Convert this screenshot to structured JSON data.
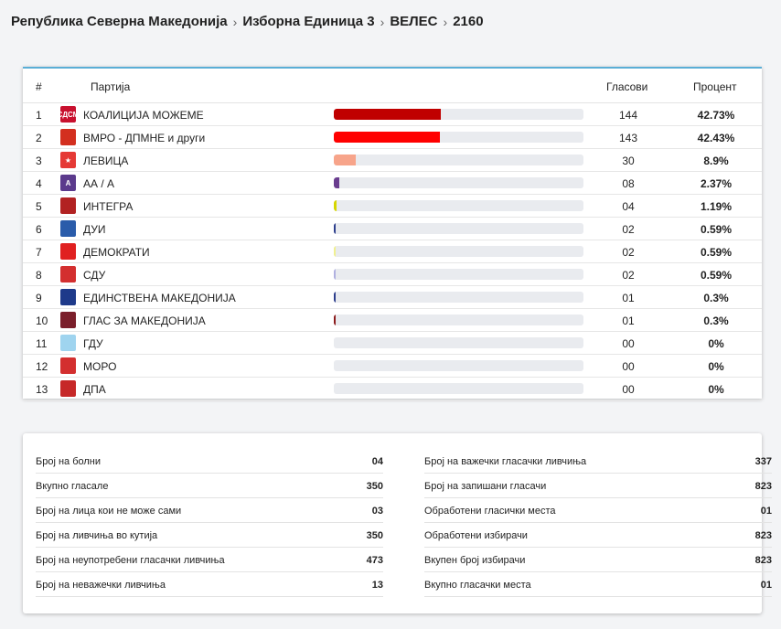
{
  "breadcrumb": [
    "Република Северна Македонија",
    "Изборна Единица 3",
    "ВЕЛЕС",
    "2160"
  ],
  "table": {
    "headers": {
      "num": "#",
      "party": "Партија",
      "votes": "Гласови",
      "percent": "Процент"
    },
    "rows": [
      {
        "num": "1",
        "name": "КОАЛИЦИЈА МОЖЕМЕ",
        "votes": "144",
        "percent": "42.73%",
        "share": 0.4273,
        "bar_color": "#c00000",
        "logo_color": "#c8102e",
        "logo_text": "СДСМ",
        "logo_icon": "sdsm-logo-icon"
      },
      {
        "num": "2",
        "name": "ВМРО - ДПМНЕ и други",
        "votes": "143",
        "percent": "42.43%",
        "share": 0.4243,
        "bar_color": "#ff0000",
        "logo_color": "#d32f1f",
        "logo_text": "",
        "logo_icon": "vmro-logo-icon"
      },
      {
        "num": "3",
        "name": "ЛЕВИЦА",
        "votes": "30",
        "percent": "8.9%",
        "share": 0.089,
        "bar_color": "#f7a48a",
        "logo_color": "#e53935",
        "logo_text": "★",
        "logo_icon": "levica-logo-icon"
      },
      {
        "num": "4",
        "name": "АА / А",
        "votes": "08",
        "percent": "2.37%",
        "share": 0.0237,
        "bar_color": "#6a3d8f",
        "logo_color": "#5b3a8c",
        "logo_text": "A",
        "logo_icon": "aa-logo-icon"
      },
      {
        "num": "5",
        "name": "ИНТЕГРА",
        "votes": "04",
        "percent": "1.19%",
        "share": 0.0119,
        "bar_color": "#d6d600",
        "logo_color": "#b22222",
        "logo_text": "",
        "logo_icon": "integra-logo-icon"
      },
      {
        "num": "6",
        "name": "ДУИ",
        "votes": "02",
        "percent": "0.59%",
        "share": 0.0059,
        "bar_color": "#2c3e8c",
        "logo_color": "#2a5caa",
        "logo_text": "",
        "logo_icon": "dui-logo-icon"
      },
      {
        "num": "7",
        "name": "ДЕМОКРАТИ",
        "votes": "02",
        "percent": "0.59%",
        "share": 0.0059,
        "bar_color": "#f0f090",
        "logo_color": "#e02020",
        "logo_text": "",
        "logo_icon": "demokrati-logo-icon"
      },
      {
        "num": "8",
        "name": "СДУ",
        "votes": "02",
        "percent": "0.59%",
        "share": 0.0059,
        "bar_color": "#b0b0e0",
        "logo_color": "#d32f2f",
        "logo_text": "",
        "logo_icon": "sdu-logo-icon"
      },
      {
        "num": "9",
        "name": "ЕДИНСТВЕНА МАКЕДОНИЈА",
        "votes": "01",
        "percent": "0.3%",
        "share": 0.003,
        "bar_color": "#2c3e8c",
        "logo_color": "#1e3a8a",
        "logo_text": "",
        "logo_icon": "edinstvena-logo-icon"
      },
      {
        "num": "10",
        "name": "ГЛАС ЗА МАКЕДОНИЈА",
        "votes": "01",
        "percent": "0.3%",
        "share": 0.003,
        "bar_color": "#8b1a1a",
        "logo_color": "#7b1f2b",
        "logo_text": "",
        "logo_icon": "glas-logo-icon"
      },
      {
        "num": "11",
        "name": "ГДУ",
        "votes": "00",
        "percent": "0%",
        "share": 0,
        "bar_color": "#cccccc",
        "logo_color": "#9fd4ef",
        "logo_text": "",
        "logo_icon": "gdu-logo-icon"
      },
      {
        "num": "12",
        "name": "МОРО",
        "votes": "00",
        "percent": "0%",
        "share": 0,
        "bar_color": "#cccccc",
        "logo_color": "#d32f2f",
        "logo_text": "",
        "logo_icon": "moro-logo-icon"
      },
      {
        "num": "13",
        "name": "ДПА",
        "votes": "00",
        "percent": "0%",
        "share": 0,
        "bar_color": "#cccccc",
        "logo_color": "#c62828",
        "logo_text": "",
        "logo_icon": "dpa-logo-icon"
      }
    ]
  },
  "stats": {
    "left": [
      {
        "label": "Број на болни",
        "value": "04"
      },
      {
        "label": "Вкупно гласале",
        "value": "350"
      },
      {
        "label": "Број на лица кои не може сами",
        "value": "03"
      },
      {
        "label": "Број на ливчиња во кутија",
        "value": "350"
      },
      {
        "label": "Број на неупотребени гласачки ливчиња",
        "value": "473"
      },
      {
        "label": "Број на неважечки ливчиња",
        "value": "13"
      }
    ],
    "right": [
      {
        "label": "Број на важечки гласачки ливчиња",
        "value": "337"
      },
      {
        "label": "Број на запишани гласачи",
        "value": "823"
      },
      {
        "label": "Обработени гласички места",
        "value": "01"
      },
      {
        "label": "Обработени избирачи",
        "value": "823"
      },
      {
        "label": "Вкупен број избирачи",
        "value": "823"
      },
      {
        "label": "Вкупно гласачки места",
        "value": "01"
      }
    ]
  }
}
